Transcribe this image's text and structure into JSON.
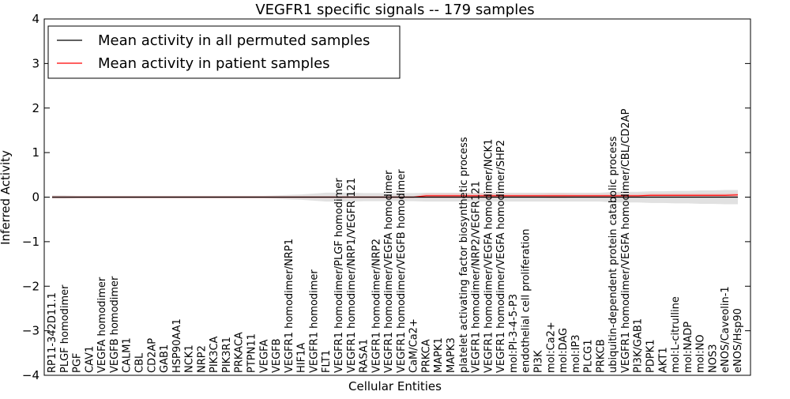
{
  "chart_data": {
    "type": "line",
    "title": "VEGFR1 specific signals -- 179 samples",
    "xlabel": "Cellular Entities",
    "ylabel": "Inferred Activity",
    "ylim": [
      -4,
      4
    ],
    "yticks": [
      -4,
      -3,
      -2,
      -1,
      0,
      1,
      2,
      3,
      4
    ],
    "grid": false,
    "legend": {
      "position": "top-left"
    },
    "categories": [
      "RP11-342D11.1",
      "PLGF homodimer",
      "PGF",
      "CAV1",
      "VEGFA homodimer",
      "VEGFB homodimer",
      "CALM1",
      "CBL",
      "CD2AP",
      "GAB1",
      "HSP90AA1",
      "NCK1",
      "NRP2",
      "PIK3CA",
      "PIK3R1",
      "PRKACA",
      "PTPN11",
      "VEGFA",
      "VEGFB",
      "VEGFR1 homodimer/NRP1",
      "HIF1A",
      "VEGFR1 homodimer",
      "FLT1",
      "VEGFR1 homodimer/PLGF homodimer",
      "VEGFR1 homodimer/NRP1/VEGFR 121",
      "RASA1",
      "VEGFR1 homodimer/NRP2",
      "VEGFR1 homodimer/VEGFA homodimer",
      "VEGFR1 homodimer/VEGFB homodimer",
      "CaM/Ca2+",
      "PRKCA",
      "MAPK1",
      "MAPK3",
      "platelet activating factor biosynthetic process",
      "VEGFR1 homodimer/NRP2/VEGFR121",
      "VEGFR1 homodimer/VEGFA homodimer/NCK1",
      "VEGFR1 homodimer/VEGFA homodimer/SHP2",
      "mol:PI-3-4-5-P3",
      "endothelial cell proliferation",
      "PI3K",
      "mol:Ca2+",
      "mol:DAG",
      "mol:IP3",
      "PLCG1",
      "PRKCB",
      "ubiquitin-dependent protein catabolic process",
      "VEGFR1 homodimer/VEGFA homodimer/CBL/CD2AP",
      "PI3K/GAB1",
      "PDPK1",
      "AKT1",
      "mol:L-citrulline",
      "mol:NADP",
      "mol:NO",
      "NOS3",
      "eNOS/Caveolin-1",
      "eNOS/Hsp90"
    ],
    "series": [
      {
        "name": "Mean activity in all permuted samples",
        "color": "#000000",
        "values": [
          0,
          0,
          0,
          0,
          0,
          0,
          0,
          0,
          0,
          0,
          0,
          0,
          0,
          0,
          0,
          0,
          0,
          0,
          0,
          0,
          0,
          0,
          0,
          0,
          0,
          0,
          0,
          0,
          0,
          0,
          0,
          0,
          0,
          0,
          0,
          0,
          0,
          0,
          0,
          0,
          0,
          0,
          0,
          0,
          0,
          0,
          0,
          0,
          0,
          0,
          0,
          0,
          0,
          0,
          0,
          0
        ],
        "band_half_width": [
          0.04,
          0.04,
          0.03,
          0.03,
          0.03,
          0.03,
          0.03,
          0.03,
          0.03,
          0.03,
          0.03,
          0.03,
          0.03,
          0.03,
          0.03,
          0.03,
          0.03,
          0.03,
          0.04,
          0.05,
          0.06,
          0.08,
          0.1,
          0.1,
          0.1,
          0.09,
          0.09,
          0.09,
          0.09,
          0.09,
          0.1,
          0.1,
          0.1,
          0.1,
          0.1,
          0.1,
          0.1,
          0.1,
          0.1,
          0.1,
          0.1,
          0.1,
          0.1,
          0.1,
          0.1,
          0.12,
          0.12,
          0.12,
          0.13,
          0.13,
          0.14,
          0.14,
          0.15,
          0.15,
          0.16,
          0.16
        ]
      },
      {
        "name": "Mean activity in patient samples",
        "color": "#ff0000",
        "values": [
          0,
          0,
          0,
          0,
          0,
          0,
          0,
          0,
          0,
          0,
          0,
          0,
          0,
          0,
          0,
          0,
          0,
          0,
          0,
          0,
          0,
          0,
          0,
          0,
          0,
          0,
          0,
          0,
          0,
          0,
          0.03,
          0.03,
          0.03,
          0.03,
          0.03,
          0.03,
          0.03,
          0.03,
          0.03,
          0.03,
          0.03,
          0.03,
          0.03,
          0.03,
          0.03,
          0.03,
          0.03,
          0.03,
          0.04,
          0.04,
          0.04,
          0.04,
          0.04,
          0.04,
          0.04,
          0.05
        ],
        "band_half_width": [
          0.02,
          0.02,
          0.02,
          0.02,
          0.02,
          0.02,
          0.02,
          0.02,
          0.02,
          0.02,
          0.02,
          0.02,
          0.02,
          0.02,
          0.02,
          0.02,
          0.02,
          0.02,
          0.02,
          0.02,
          0.02,
          0.02,
          0.02,
          0.02,
          0.02,
          0.02,
          0.02,
          0.02,
          0.02,
          0.02,
          0.05,
          0.05,
          0.05,
          0.05,
          0.05,
          0.05,
          0.04,
          0.04,
          0.04,
          0.04,
          0.05,
          0.05,
          0.04,
          0.04,
          0.04,
          0.04,
          0.04,
          0.04,
          0.04,
          0.04,
          0.04,
          0.04,
          0.04,
          0.04,
          0.04,
          0.04
        ]
      }
    ]
  }
}
